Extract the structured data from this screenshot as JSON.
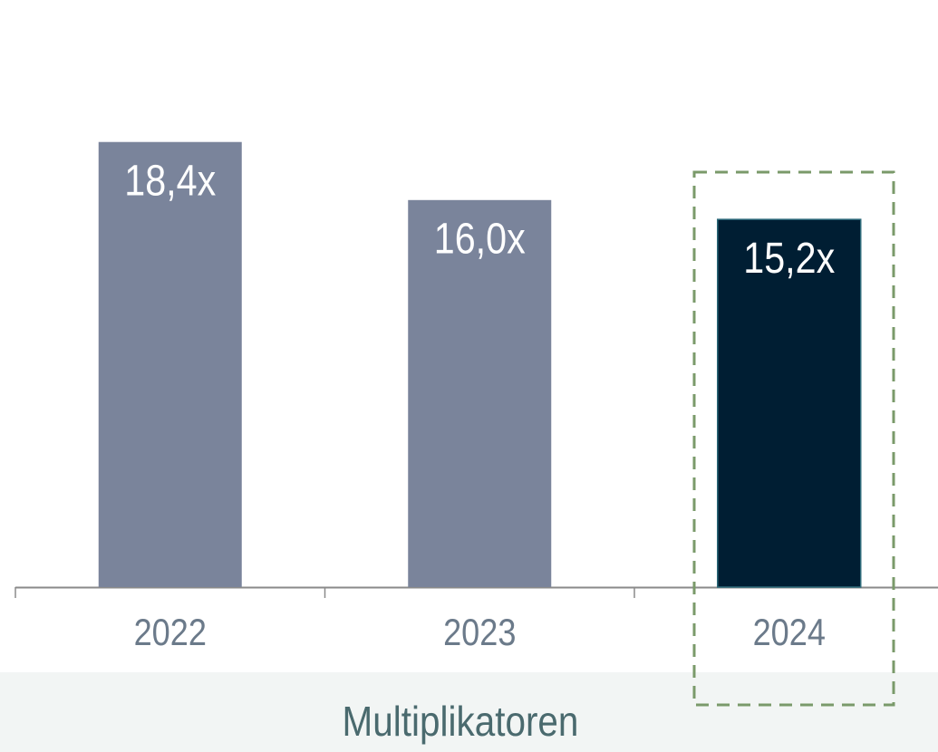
{
  "chart_data": {
    "type": "bar",
    "title": "Multiplikatoren",
    "categories": [
      "2022",
      "2023",
      "2024"
    ],
    "values": [
      18.4,
      16.0,
      15.2
    ],
    "value_labels": [
      "18,4x",
      "16,0x",
      "15,2x"
    ],
    "colors": [
      "#7a849b",
      "#7a849b",
      "#001e33"
    ]
  }
}
